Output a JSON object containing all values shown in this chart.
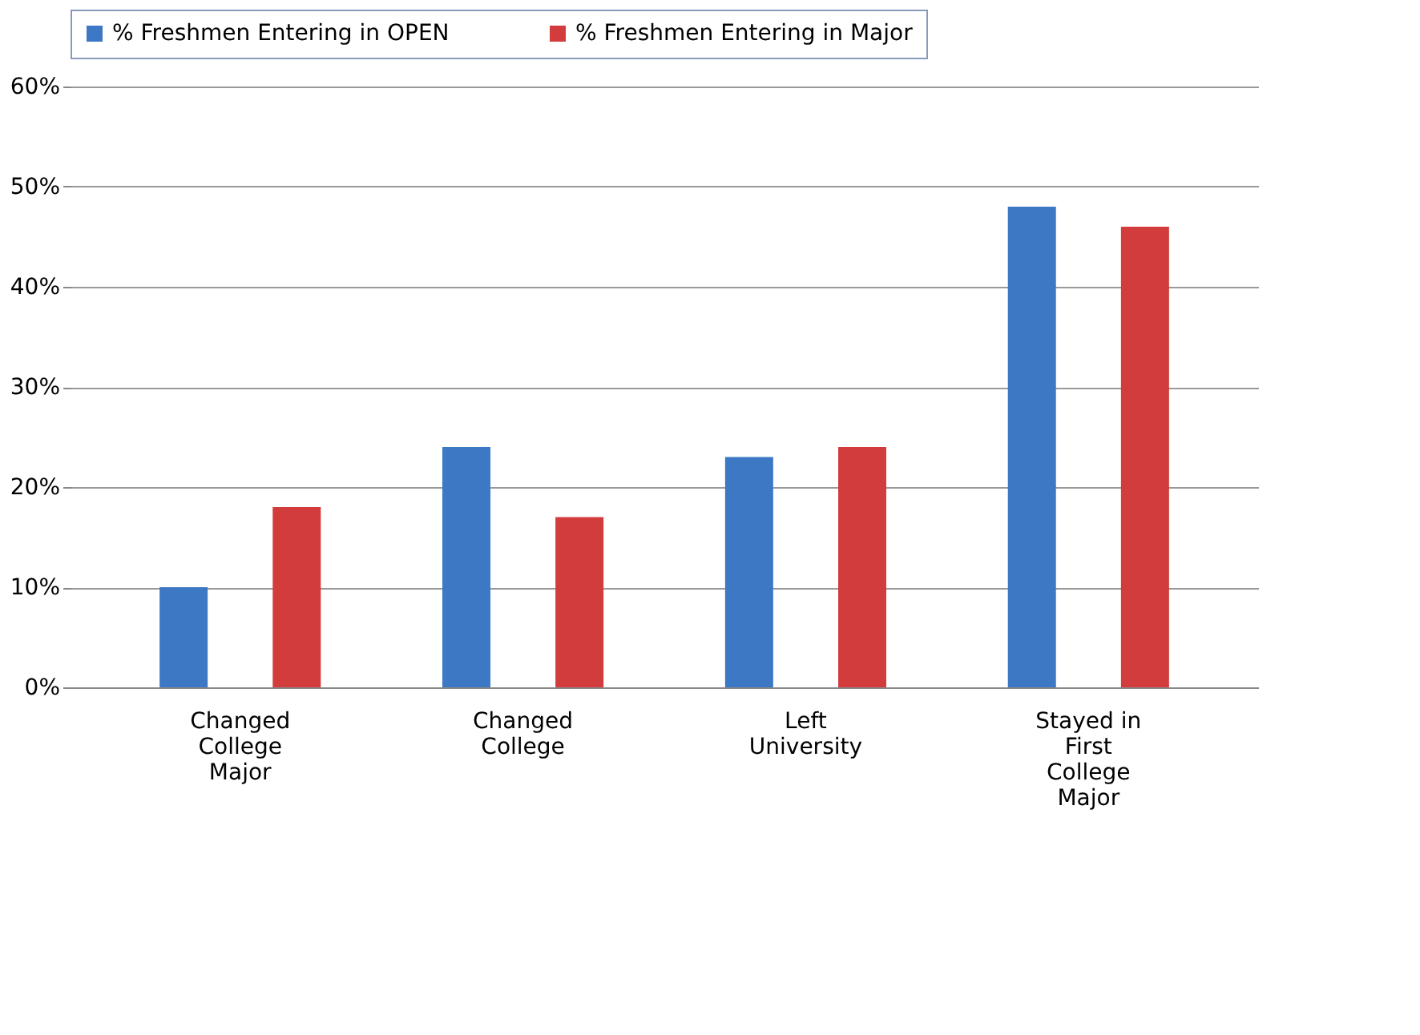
{
  "chart_data": {
    "type": "bar",
    "categories": [
      "Changed\nCollege\nMajor",
      "Changed\nCollege",
      "Left\nUniversity",
      "Stayed in\nFirst\nCollege\nMajor"
    ],
    "series": [
      {
        "name": "% Freshmen Entering in OPEN",
        "color": "#3c78c4",
        "values": [
          10,
          24,
          23,
          48
        ]
      },
      {
        "name": "% Freshmen Entering in Major",
        "color": "#d23c3c",
        "values": [
          18,
          17,
          24,
          46
        ]
      }
    ],
    "ylim": [
      0,
      60
    ],
    "yticks": [
      {
        "value": 0,
        "label": "0%"
      },
      {
        "value": 10,
        "label": "10%"
      },
      {
        "value": 20,
        "label": "20%"
      },
      {
        "value": 30,
        "label": "30%"
      },
      {
        "value": 40,
        "label": "40%"
      },
      {
        "value": 50,
        "label": "50%"
      },
      {
        "value": 60,
        "label": "60%"
      }
    ],
    "grid": "y",
    "legend": "top"
  }
}
